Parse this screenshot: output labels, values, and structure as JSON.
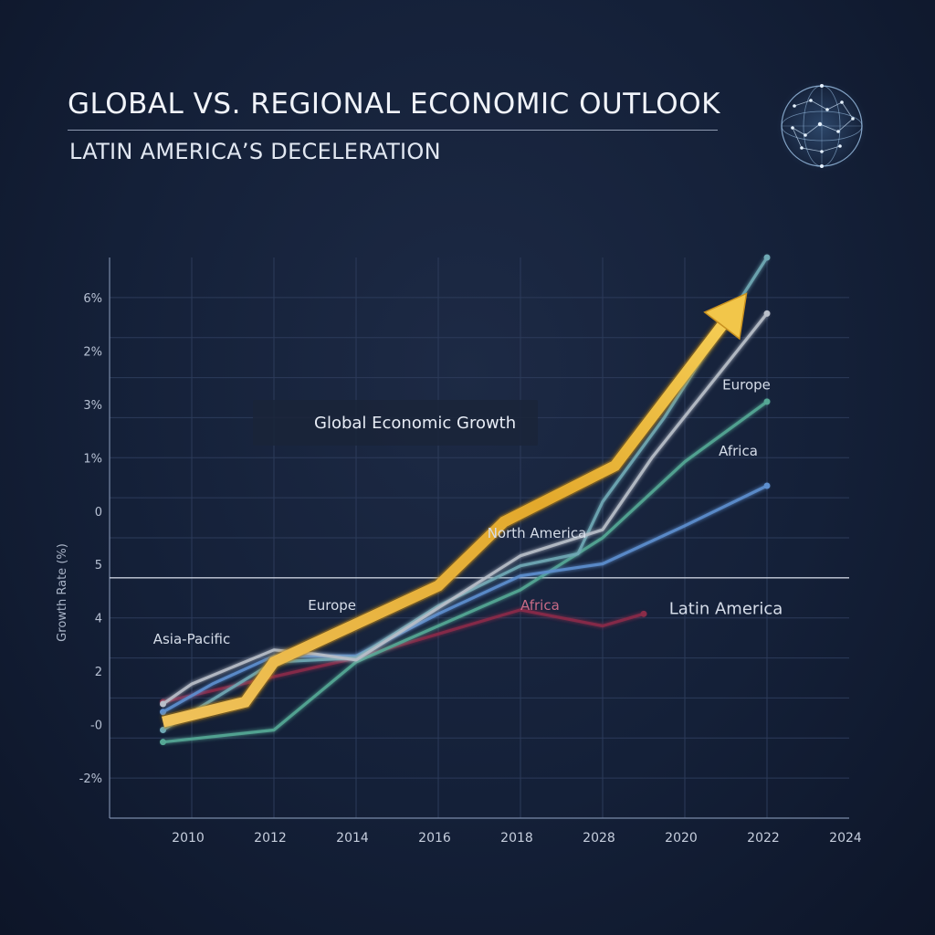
{
  "header": {
    "title": "GLOBAL VS. REGIONAL ECONOMIC OUTLOOK",
    "subtitle": "LATIN AMERICA’S DECELERATION"
  },
  "chart_data": {
    "type": "line",
    "ylabel": "Growth Rate (%)",
    "xlabel": "",
    "x_tick_labels": [
      "2010",
      "2012",
      "2014",
      "2016",
      "2018",
      "2028",
      "2020",
      "2022",
      "2024"
    ],
    "y_tick_labels": [
      "6%",
      "2%",
      "3%",
      "1%",
      "0",
      "5",
      "4",
      "2",
      "-0",
      "-2%"
    ],
    "grid": true,
    "legend": {
      "position": "upper-left",
      "label": "Global Economic Growth"
    },
    "colors": {
      "global": "#e9b93e",
      "asia_pacific": "#b9bfc9",
      "europe_teal": "#6fa9b5",
      "africa_green": "#55a895",
      "north_america": "#5d8fcf",
      "latin_america": "#8a2c48",
      "zero_line": "#c8cfdc",
      "axis": "#7a8aa8",
      "grid": "#2c3b5a"
    },
    "series": [
      {
        "name": "Global Economic Growth",
        "key": "global",
        "points": [
          [
            2009.3,
            -0.6
          ],
          [
            2011.3,
            -0.1
          ],
          [
            2012.0,
            0.9
          ],
          [
            2016.0,
            2.8
          ],
          [
            2017.6,
            4.4
          ],
          [
            2020.3,
            5.8
          ],
          [
            2023.5,
            10.1
          ]
        ]
      },
      {
        "name": "Asia-Pacific",
        "key": "asia_pacific",
        "points": [
          [
            2009.3,
            -0.15
          ],
          [
            2010.0,
            0.35
          ],
          [
            2012.0,
            1.2
          ],
          [
            2013.0,
            1.1
          ],
          [
            2014.0,
            0.95
          ],
          [
            2016.0,
            2.25
          ],
          [
            2018.0,
            3.55
          ],
          [
            2020.0,
            4.2
          ],
          [
            2021.2,
            6.0
          ],
          [
            2024.0,
            9.6
          ]
        ]
      },
      {
        "name": "Europe",
        "key": "europe_teal",
        "points": [
          [
            2009.3,
            -0.8
          ],
          [
            2012.0,
            0.9
          ],
          [
            2014.0,
            1.0
          ],
          [
            2016.0,
            2.3
          ],
          [
            2018.0,
            3.3
          ],
          [
            2019.4,
            3.6
          ],
          [
            2020.0,
            4.9
          ],
          [
            2021.5,
            7.0
          ],
          [
            2024.0,
            11.0
          ]
        ]
      },
      {
        "name": "Africa",
        "key": "africa_green",
        "points": [
          [
            2009.3,
            -1.1
          ],
          [
            2012.0,
            -0.8
          ],
          [
            2014.0,
            0.9
          ],
          [
            2016.0,
            1.8
          ],
          [
            2018.0,
            2.7
          ],
          [
            2020.0,
            4.0
          ],
          [
            2022.0,
            5.9
          ],
          [
            2024.0,
            7.4
          ]
        ]
      },
      {
        "name": "North America",
        "key": "north_america",
        "points": [
          [
            2009.3,
            -0.35
          ],
          [
            2010.5,
            0.35
          ],
          [
            2012.0,
            1.05
          ],
          [
            2014.0,
            1.05
          ],
          [
            2016.0,
            2.1
          ],
          [
            2018.0,
            3.05
          ],
          [
            2020.0,
            3.35
          ],
          [
            2022.0,
            4.3
          ],
          [
            2024.0,
            5.3
          ]
        ]
      },
      {
        "name": "Latin America",
        "key": "latin_america",
        "points": [
          [
            2009.3,
            -0.1
          ],
          [
            2011.0,
            0.3
          ],
          [
            2014.0,
            1.0
          ],
          [
            2016.0,
            1.6
          ],
          [
            2018.0,
            2.2
          ],
          [
            2020.0,
            1.8
          ],
          [
            2021.0,
            2.1
          ]
        ]
      }
    ],
    "annotations": [
      {
        "text": "Asia-Pacific",
        "x": 2010.0,
        "y": 1.35,
        "key": "asia_pacific",
        "anchor": "middle"
      },
      {
        "text": "Europe",
        "x": 2014.0,
        "y": 2.2,
        "key": "asia_pacific",
        "anchor": "end"
      },
      {
        "text": "North America",
        "x": 2018.4,
        "y": 4.0,
        "key": "asia_pacific",
        "anchor": "middle"
      },
      {
        "text": "Africa",
        "x": 2018.0,
        "y": 2.2,
        "key": "latin_america",
        "anchor": "start"
      },
      {
        "text": "Latin America",
        "x": 2023.0,
        "y": 2.1,
        "key": "asia_pacific",
        "anchor": "middle"
      },
      {
        "text": "Europe",
        "x": 2023.5,
        "y": 7.7,
        "key": "asia_pacific",
        "anchor": "middle"
      },
      {
        "text": "Africa",
        "x": 2023.3,
        "y": 6.05,
        "key": "asia_pacific",
        "anchor": "middle"
      }
    ]
  }
}
